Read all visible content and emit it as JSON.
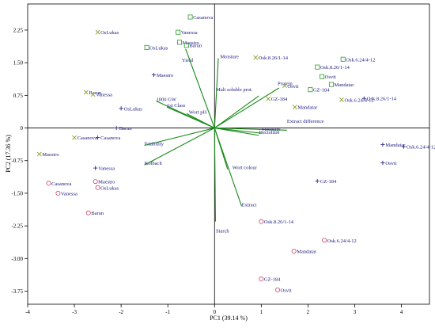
{
  "chart_data": {
    "type": "scatter",
    "subtype": "pca-biplot",
    "title": "",
    "xlabel": "PC1 (39.14 %)",
    "ylabel": "PC2 (17.36 %)",
    "xlim": [
      -4,
      4.6
    ],
    "ylim": [
      -4.05,
      2.85
    ],
    "x_ticks": [
      -4,
      -3,
      -2,
      -1,
      0,
      1,
      2,
      3,
      4
    ],
    "x_tick_labels": [
      "-4",
      "-3",
      "-2",
      "-1",
      "0",
      "1",
      "2",
      "3",
      "4"
    ],
    "y_ticks": [
      2.25,
      1.5,
      0.75,
      0,
      -0.75,
      -1.5,
      -2.25,
      -3,
      -3.75
    ],
    "y_tick_labels": [
      "2.25",
      "1.50",
      "0.75",
      "0",
      "-0.75",
      "-1.50",
      "-2.25",
      "-3.00",
      "-3.75"
    ],
    "grid": false,
    "zero_lines": true,
    "colors": {
      "loadings": "#1a8a1a",
      "labels": "#1a1a80",
      "square": "#2a9a2a",
      "x": "#8aa020",
      "plus": "#2a2a90",
      "circle": "#d04060"
    },
    "loadings": [
      {
        "name": "Moisture",
        "x": 0.08,
        "y": 1.6,
        "lx": 0.12,
        "ly": 1.6
      },
      {
        "name": "Yield",
        "x": -0.62,
        "y": 1.82,
        "lx": -0.7,
        "ly": 1.52
      },
      {
        "name": "Malt soluble prot.",
        "x": 0.95,
        "y": 0.74,
        "lx": 0.03,
        "ly": 0.85
      },
      {
        "name": "Protein",
        "x": 1.38,
        "y": 0.92,
        "lx": 1.35,
        "ly": 0.98
      },
      {
        "name": "1000 GW",
        "x": -1.25,
        "y": 0.62,
        "lx": -1.25,
        "ly": 0.62
      },
      {
        "name": "1st Class",
        "x": -1.02,
        "y": 0.48,
        "lx": -1.02,
        "ly": 0.48
      },
      {
        "name": "Wort pH",
        "x": -0.6,
        "y": 0.33,
        "lx": -0.55,
        "ly": 0.33
      },
      {
        "name": "Extract difference",
        "x": 1.55,
        "y": -0.05,
        "lx": 1.55,
        "ly": 0.12
      },
      {
        "name": "Viscosity",
        "x": 1.0,
        "y": -0.12,
        "lx": 1.0,
        "ly": -0.06
      },
      {
        "name": "Hectolitre",
        "x": 0.95,
        "y": -0.17,
        "lx": 0.95,
        "ly": -0.14
      },
      {
        "name": "Friability",
        "x": -1.5,
        "y": -0.4,
        "lx": -1.5,
        "ly": -0.4
      },
      {
        "name": "Kolbach",
        "x": -1.5,
        "y": -0.85,
        "lx": -1.5,
        "ly": -0.85
      },
      {
        "name": "Wort colour",
        "x": 0.28,
        "y": -0.95,
        "lx": 0.38,
        "ly": -0.95
      },
      {
        "name": "Extract",
        "x": 0.58,
        "y": -1.8,
        "lx": 0.58,
        "ly": -1.8
      },
      {
        "name": "Starch",
        "x": 0.02,
        "y": -2.15,
        "lx": 0.03,
        "ly": -2.4
      }
    ],
    "series": [
      {
        "marker": "square",
        "points": [
          {
            "label": "Casanova",
            "x": -0.52,
            "y": 2.55
          },
          {
            "label": "Vanessa",
            "x": -0.78,
            "y": 2.2
          },
          {
            "label": "Maestro",
            "x": -0.75,
            "y": 1.97
          },
          {
            "label": "Barun",
            "x": -0.6,
            "y": 1.9
          },
          {
            "label": "OsLukas",
            "x": -1.45,
            "y": 1.85
          },
          {
            "label": "Osk.6.24/4-12",
            "x": 2.75,
            "y": 1.58
          },
          {
            "label": "Osk.8.26/1-14",
            "x": 2.2,
            "y": 1.4
          },
          {
            "label": "Osvit",
            "x": 2.3,
            "y": 1.18
          },
          {
            "label": "Mandatar",
            "x": 2.5,
            "y": 1.0
          },
          {
            "label": "GZ-184",
            "x": 2.05,
            "y": 0.88
          }
        ]
      },
      {
        "marker": "x",
        "points": [
          {
            "label": "OsLukas",
            "x": -2.5,
            "y": 2.2
          },
          {
            "label": "Barun",
            "x": -2.75,
            "y": 0.82
          },
          {
            "label": "Vanessa",
            "x": -2.6,
            "y": 0.77
          },
          {
            "label": "Casanova",
            "x": -3.0,
            "y": -0.22
          },
          {
            "label": "Maestro",
            "x": -3.75,
            "y": -0.6
          },
          {
            "label": "Osk.8.26/1-14",
            "x": 0.88,
            "y": 1.62
          },
          {
            "label": "Osvit",
            "x": 1.5,
            "y": 0.97
          },
          {
            "label": "GZ-184",
            "x": 1.15,
            "y": 0.67
          },
          {
            "label": "Mandatar",
            "x": 1.72,
            "y": 0.48
          },
          {
            "label": "Osk.6.24/4-12",
            "x": 2.72,
            "y": 0.65
          }
        ]
      },
      {
        "marker": "plus",
        "points": [
          {
            "label": "Maestro",
            "x": -1.3,
            "y": 1.22
          },
          {
            "label": "OsLukas",
            "x": -2.0,
            "y": 0.45
          },
          {
            "label": "Barun",
            "x": -2.1,
            "y": 0.0
          },
          {
            "label": "Casanova",
            "x": -2.5,
            "y": -0.22
          },
          {
            "label": "Vanessa",
            "x": -2.55,
            "y": -0.92
          },
          {
            "label": "Osk.8.26/1-14",
            "x": 3.2,
            "y": 0.68
          },
          {
            "label": "Mandatar",
            "x": 3.6,
            "y": -0.38
          },
          {
            "label": "Osk.6.24/4-12",
            "x": 4.05,
            "y": -0.43
          },
          {
            "label": "Osvit",
            "x": 3.6,
            "y": -0.8
          },
          {
            "label": "GZ-184",
            "x": 2.2,
            "y": -1.22
          }
        ]
      },
      {
        "marker": "circle",
        "points": [
          {
            "label": "Casanova",
            "x": -3.55,
            "y": -1.27
          },
          {
            "label": "Vanessa",
            "x": -3.35,
            "y": -1.5
          },
          {
            "label": "Maestro",
            "x": -2.55,
            "y": -1.23
          },
          {
            "label": "OsLukas",
            "x": -2.5,
            "y": -1.37
          },
          {
            "label": "Barun",
            "x": -2.7,
            "y": -1.95
          },
          {
            "label": "Osk.8.26/1-14",
            "x": 1.0,
            "y": -2.15
          },
          {
            "label": "Osk.6.24/4-12",
            "x": 2.35,
            "y": -2.58
          },
          {
            "label": "Mandatar",
            "x": 1.7,
            "y": -2.83
          },
          {
            "label": "GZ-184",
            "x": 1.0,
            "y": -3.47
          },
          {
            "label": "Osvit",
            "x": 1.35,
            "y": -3.72
          }
        ]
      }
    ]
  }
}
